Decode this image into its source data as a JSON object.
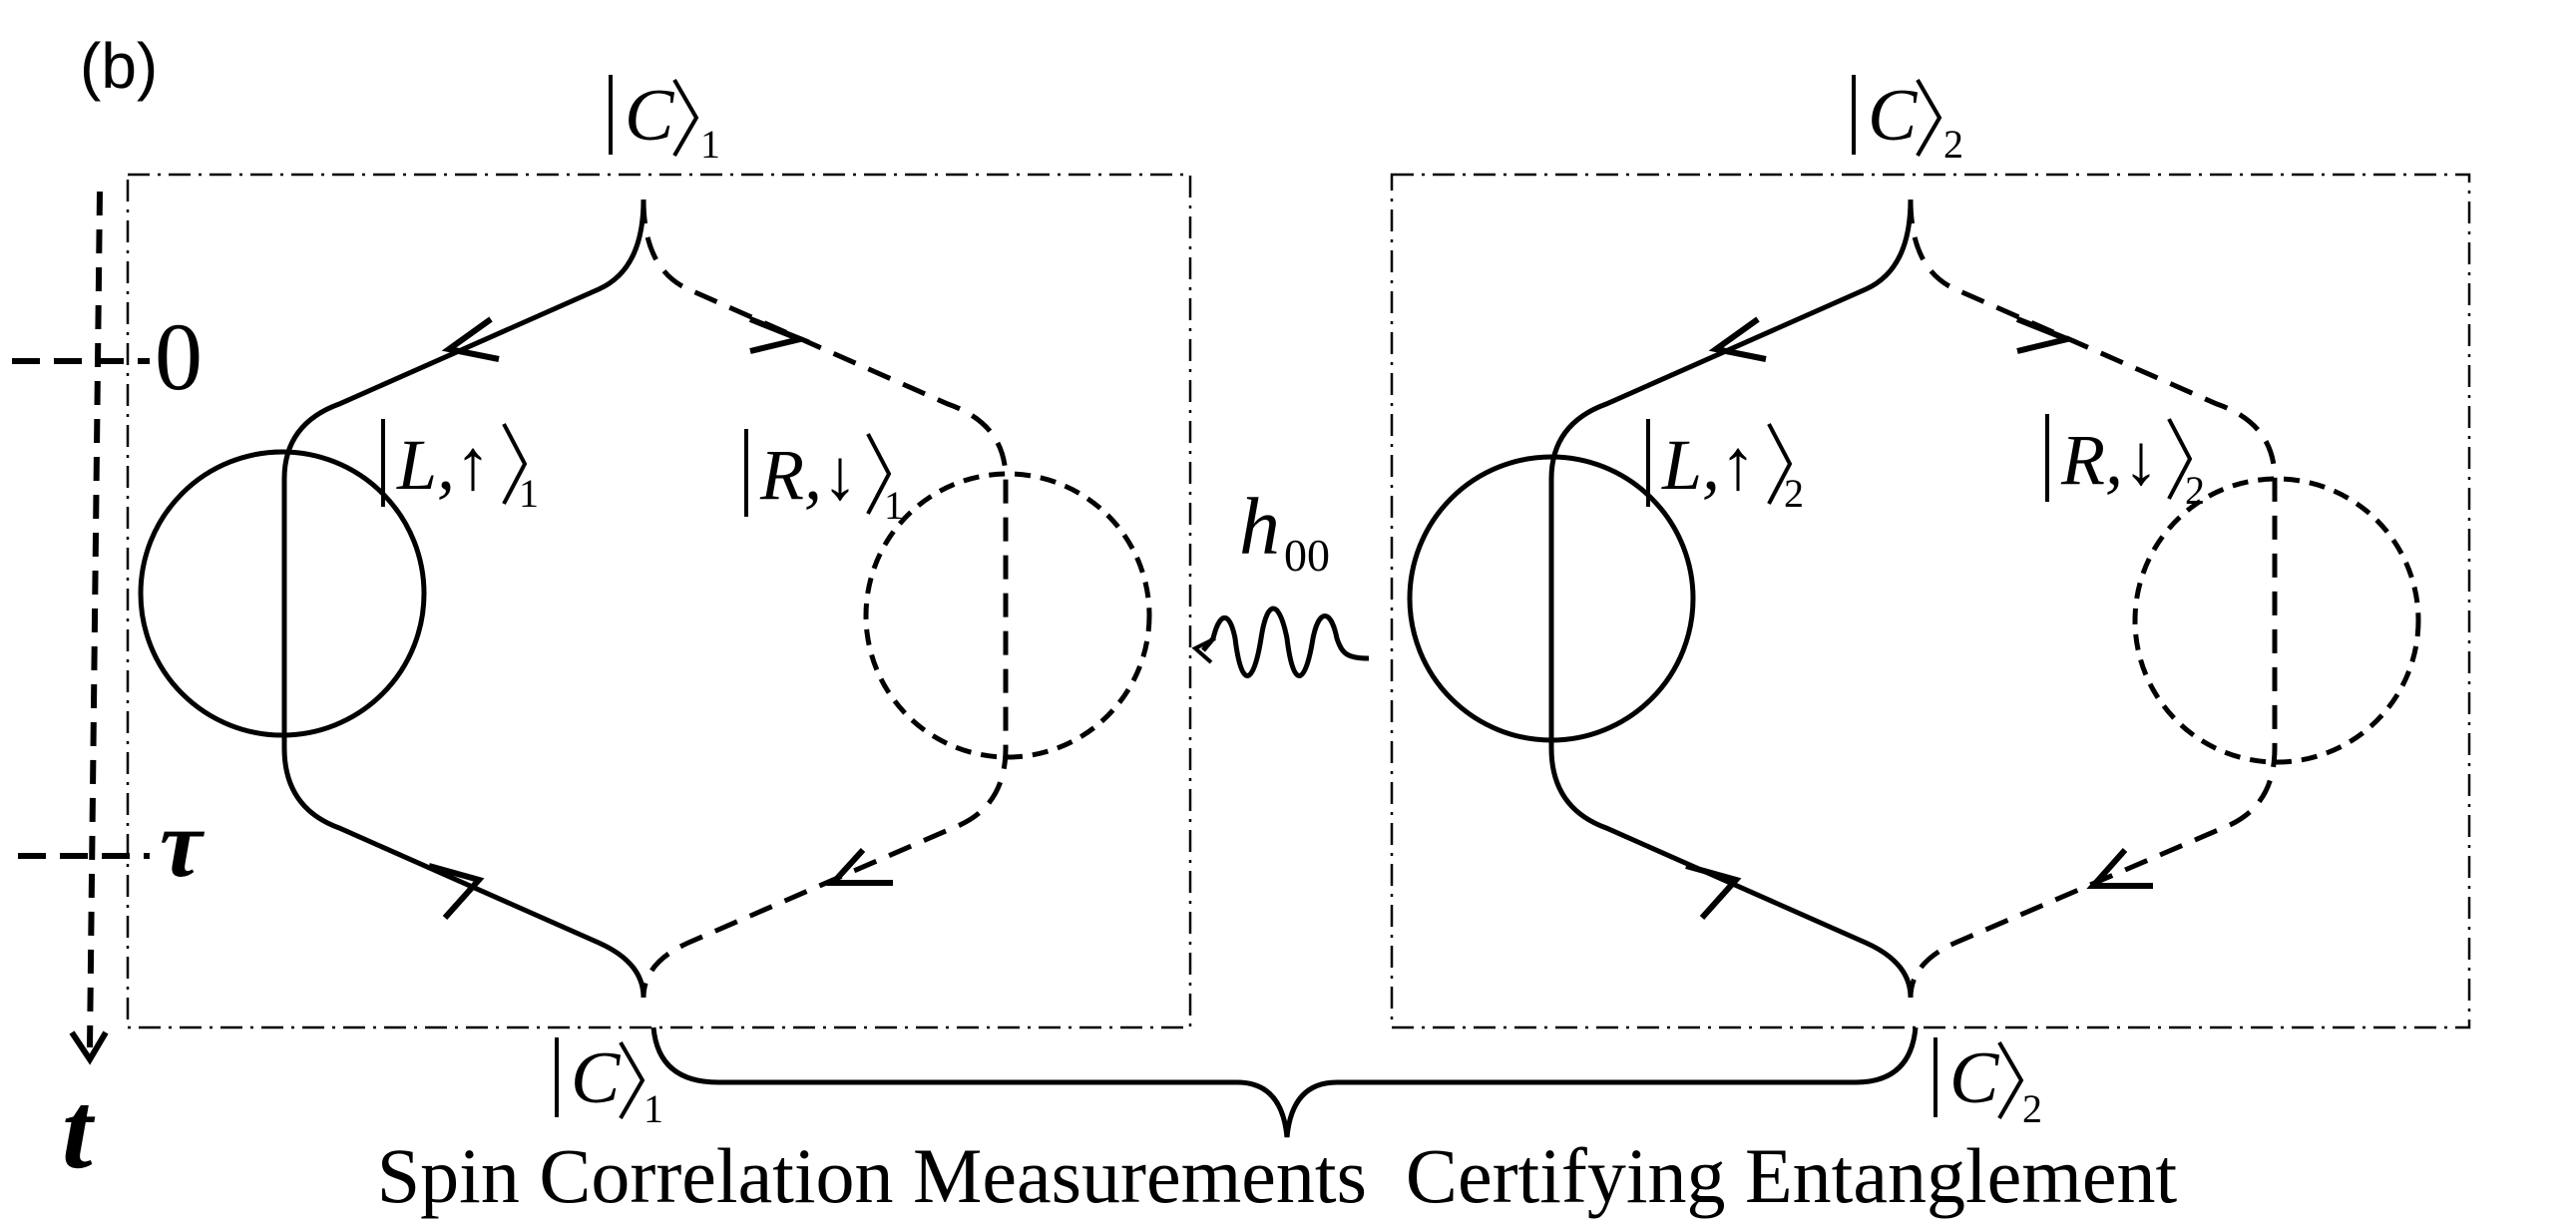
{
  "panel_label": "(b)",
  "time_axis": {
    "label": "t",
    "tick_zero": "0",
    "tick_tau": "τ"
  },
  "system_1": {
    "top_state": {
      "name": "C",
      "subscript": "1"
    },
    "bottom_state": {
      "name": "C",
      "subscript": "1"
    },
    "left_state": {
      "name": "L,↑",
      "subscript": "1"
    },
    "right_state": {
      "name": "R,↓",
      "subscript": "1"
    }
  },
  "system_2": {
    "top_state": {
      "name": "C",
      "subscript": "2"
    },
    "bottom_state": {
      "name": "C",
      "subscript": "2"
    },
    "left_state": {
      "name": "L,↑",
      "subscript": "2"
    },
    "right_state": {
      "name": "R,↓",
      "subscript": "2"
    }
  },
  "gravity_field": {
    "symbol": "h",
    "subscript": "00"
  },
  "caption": "Spin Correlation Measurements  Certifying Entanglement"
}
